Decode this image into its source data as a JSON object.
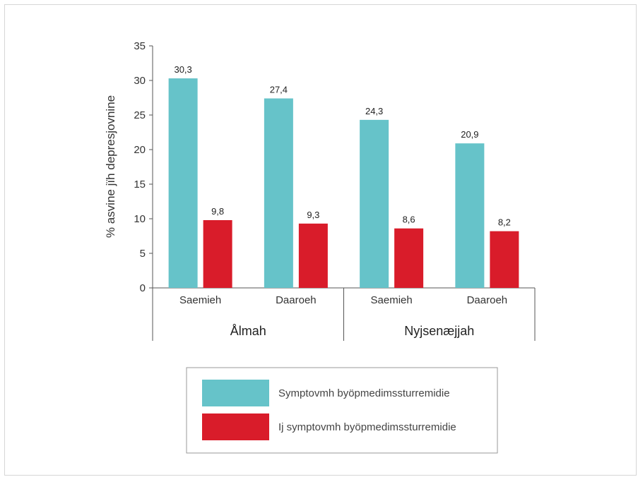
{
  "chart_data": {
    "type": "bar",
    "ylabel": "% asvine jïh depresjovnine",
    "ylim": [
      0,
      35
    ],
    "yticks": [
      0,
      5,
      10,
      15,
      20,
      25,
      30,
      35
    ],
    "groups": [
      {
        "label": "Ålmah",
        "categories": [
          "Saemieh",
          "Daaroeh"
        ]
      },
      {
        "label": "Nyjsenæjjah",
        "categories": [
          "Saemieh",
          "Daaroeh"
        ]
      }
    ],
    "series": [
      {
        "name": "Symptovmh byöpmedimssturremidie",
        "color": "#66c3c9",
        "values": [
          30.3,
          27.4,
          24.3,
          20.9
        ],
        "labels": [
          "30,3",
          "27,4",
          "24,3",
          "20,9"
        ]
      },
      {
        "name": "Ij symptovmh byöpmedimssturremidie",
        "color": "#d91c2a",
        "values": [
          9.8,
          9.3,
          8.6,
          8.2
        ],
        "labels": [
          "9,8",
          "9,3",
          "8,6",
          "8,2"
        ]
      }
    ],
    "legend": "bottom",
    "grid": false
  }
}
